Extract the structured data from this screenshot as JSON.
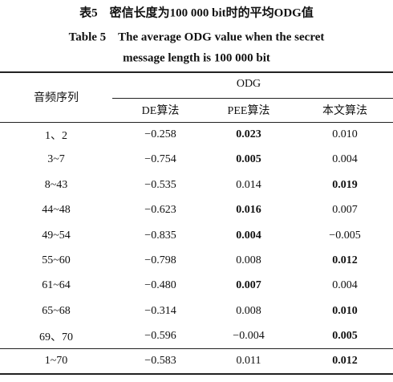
{
  "caption": {
    "title_cn": "表5　密信长度为100 000 bit时的平均ODG值",
    "title_en_1": "Table 5　The average ODG value when the secret",
    "title_en_2": "message length is 100 000 bit"
  },
  "table": {
    "row_header": "音频序列",
    "group_header": "ODG",
    "columns": [
      "DE算法",
      "PEE算法",
      "本文算法"
    ],
    "rows": [
      {
        "cells": [
          "1、2",
          "−0.258",
          "0.023",
          "0.010"
        ],
        "bold": 2
      },
      {
        "cells": [
          "3~7",
          "−0.754",
          "0.005",
          "0.004"
        ],
        "bold": 2
      },
      {
        "cells": [
          "8~43",
          "−0.535",
          "0.014",
          "0.019"
        ],
        "bold": 3
      },
      {
        "cells": [
          "44~48",
          "−0.623",
          "0.016",
          "0.007"
        ],
        "bold": 2
      },
      {
        "cells": [
          "49~54",
          "−0.835",
          "0.004",
          "−0.005"
        ],
        "bold": 2
      },
      {
        "cells": [
          "55~60",
          "−0.798",
          "0.008",
          "0.012"
        ],
        "bold": 3
      },
      {
        "cells": [
          "61~64",
          "−0.480",
          "0.007",
          "0.004"
        ],
        "bold": 2
      },
      {
        "cells": [
          "65~68",
          "−0.314",
          "0.008",
          "0.010"
        ],
        "bold": 3
      },
      {
        "cells": [
          "69、70",
          "−0.596",
          "−0.004",
          "0.005"
        ],
        "bold": 3
      }
    ],
    "total": {
      "cells": [
        "1~70",
        "−0.583",
        "0.011",
        "0.012"
      ],
      "bold": 3
    }
  }
}
